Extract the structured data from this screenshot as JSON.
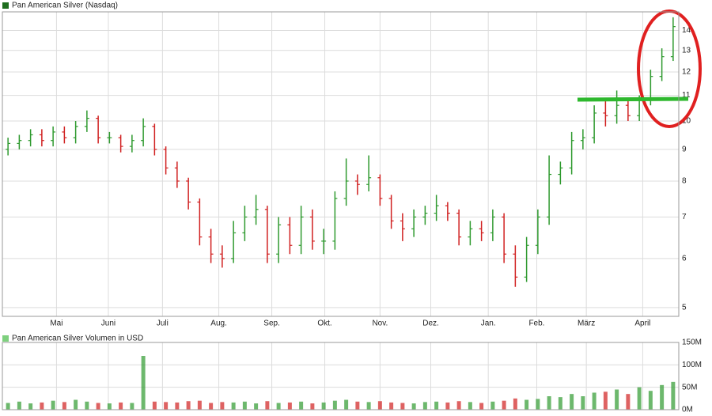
{
  "chart_data": [
    {
      "type": "ohlc",
      "title": "Pan American Silver (Nasdaq)",
      "log_scale": true,
      "grid": true,
      "up_color": "#2f9a2f",
      "down_color": "#d02020",
      "legend_color": "#1e6e1e",
      "open": [
        9.0,
        9.2,
        9.3,
        9.5,
        9.3,
        9.6,
        9.4,
        9.8,
        10.1,
        9.4,
        9.4,
        9.1,
        9.3,
        9.8,
        9.0,
        8.4,
        8.0,
        7.4,
        6.5,
        6.1,
        6.0,
        6.6,
        7.0,
        7.2,
        6.1,
        6.8,
        6.3,
        7.0,
        6.4,
        6.4,
        7.5,
        8.0,
        7.9,
        8.1,
        7.5,
        6.9,
        6.7,
        7.0,
        7.1,
        7.3,
        7.1,
        6.5,
        6.7,
        6.6,
        7.0,
        6.1,
        5.6,
        6.3,
        7.0,
        8.2,
        8.4,
        9.3,
        9.4,
        10.3,
        10.2,
        10.6,
        10.2,
        10.8,
        11.8,
        12.7
      ],
      "high": [
        9.4,
        9.5,
        9.7,
        9.7,
        9.8,
        9.8,
        10.0,
        10.4,
        10.2,
        9.6,
        9.5,
        9.5,
        10.1,
        9.9,
        9.1,
        8.6,
        8.1,
        7.5,
        6.7,
        6.3,
        6.9,
        7.3,
        7.6,
        7.3,
        7.0,
        7.0,
        7.3,
        7.2,
        6.7,
        7.7,
        8.7,
        8.2,
        8.8,
        8.2,
        7.6,
        7.1,
        7.2,
        7.3,
        7.6,
        7.4,
        7.2,
        6.9,
        6.9,
        7.2,
        7.1,
        6.3,
        6.5,
        7.2,
        8.8,
        8.6,
        9.6,
        9.7,
        10.6,
        10.8,
        11.2,
        10.8,
        11.0,
        12.1,
        13.1,
        14.7
      ],
      "low": [
        8.8,
        9.0,
        9.1,
        9.1,
        9.1,
        9.2,
        9.2,
        9.6,
        9.2,
        9.2,
        8.9,
        8.9,
        9.1,
        8.8,
        8.2,
        7.8,
        7.2,
        6.3,
        5.9,
        5.8,
        5.9,
        6.4,
        6.8,
        5.9,
        5.9,
        6.1,
        6.1,
        6.2,
        6.1,
        6.2,
        7.3,
        7.6,
        7.7,
        7.3,
        6.7,
        6.4,
        6.5,
        6.8,
        6.9,
        6.9,
        6.3,
        6.3,
        6.4,
        6.4,
        5.9,
        5.4,
        5.5,
        6.1,
        6.8,
        7.9,
        8.2,
        9.0,
        9.2,
        9.8,
        9.9,
        10.0,
        10.0,
        10.6,
        11.6,
        12.5
      ],
      "close": [
        9.2,
        9.3,
        9.5,
        9.3,
        9.6,
        9.4,
        9.8,
        10.1,
        9.4,
        9.4,
        9.1,
        9.3,
        9.8,
        9.0,
        8.4,
        8.0,
        7.4,
        6.5,
        6.1,
        6.0,
        6.6,
        7.0,
        7.2,
        6.1,
        6.8,
        6.3,
        7.0,
        6.4,
        6.4,
        7.5,
        8.0,
        7.9,
        8.1,
        7.5,
        6.9,
        6.7,
        7.0,
        7.1,
        7.3,
        7.1,
        6.5,
        6.7,
        6.6,
        7.0,
        6.1,
        5.6,
        6.3,
        7.0,
        8.2,
        8.4,
        9.3,
        9.4,
        10.3,
        10.2,
        10.6,
        10.2,
        10.8,
        11.8,
        12.7,
        14.2
      ],
      "xlim": [
        -0.5,
        59.5
      ],
      "xticks": [
        {
          "value": 4.3,
          "label": "Mai"
        },
        {
          "value": 8.9,
          "label": "Juni"
        },
        {
          "value": 13.7,
          "label": "Juli"
        },
        {
          "value": 18.7,
          "label": "Aug."
        },
        {
          "value": 23.4,
          "label": "Sep."
        },
        {
          "value": 28.1,
          "label": "Okt."
        },
        {
          "value": 33.0,
          "label": "Nov."
        },
        {
          "value": 37.5,
          "label": "Dez."
        },
        {
          "value": 42.6,
          "label": "Jan."
        },
        {
          "value": 46.9,
          "label": "Feb."
        },
        {
          "value": 51.3,
          "label": "März"
        },
        {
          "value": 56.3,
          "label": "April"
        }
      ],
      "ylim": [
        4.84,
        15.0
      ],
      "yticks": [
        5,
        6,
        7,
        8,
        9,
        10,
        11,
        12,
        13,
        14
      ]
    },
    {
      "type": "bar",
      "title": "Pan American Silver Volumen in USD",
      "grid": true,
      "legend_color": "#7ed07e",
      "values": [
        15,
        18,
        14,
        16,
        20,
        17,
        22,
        18,
        15,
        14,
        16,
        15,
        120,
        18,
        17,
        16,
        19,
        20,
        15,
        17,
        16,
        18,
        14,
        19,
        15,
        16,
        18,
        14,
        16,
        20,
        22,
        18,
        17,
        19,
        16,
        15,
        14,
        17,
        18,
        16,
        19,
        17,
        15,
        18,
        20,
        25,
        22,
        24,
        30,
        28,
        35,
        30,
        38,
        40,
        45,
        35,
        50,
        42,
        55,
        62
      ],
      "ylim": [
        0,
        150
      ],
      "yticks": [
        {
          "value": 0,
          "label": "0M"
        },
        {
          "value": 50,
          "label": "50M"
        },
        {
          "value": 100,
          "label": "100M"
        },
        {
          "value": 150,
          "label": "150M"
        }
      ]
    }
  ]
}
